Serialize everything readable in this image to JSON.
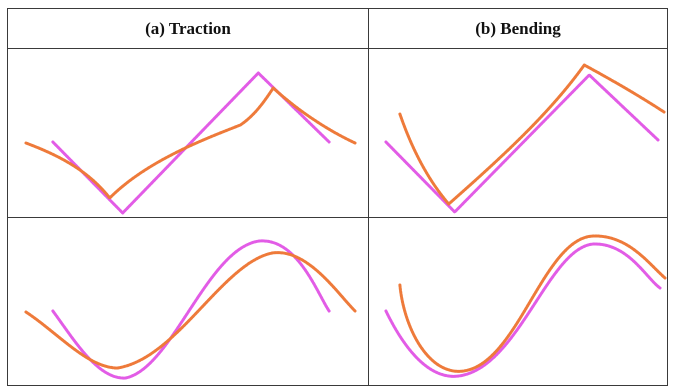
{
  "table": {
    "headers": {
      "a": "(a) Traction",
      "b": "(b) Bending"
    }
  },
  "colors": {
    "deformed": "#ee7a3a",
    "reference": "#e25ce6",
    "border": "#3a3a3a"
  }
}
